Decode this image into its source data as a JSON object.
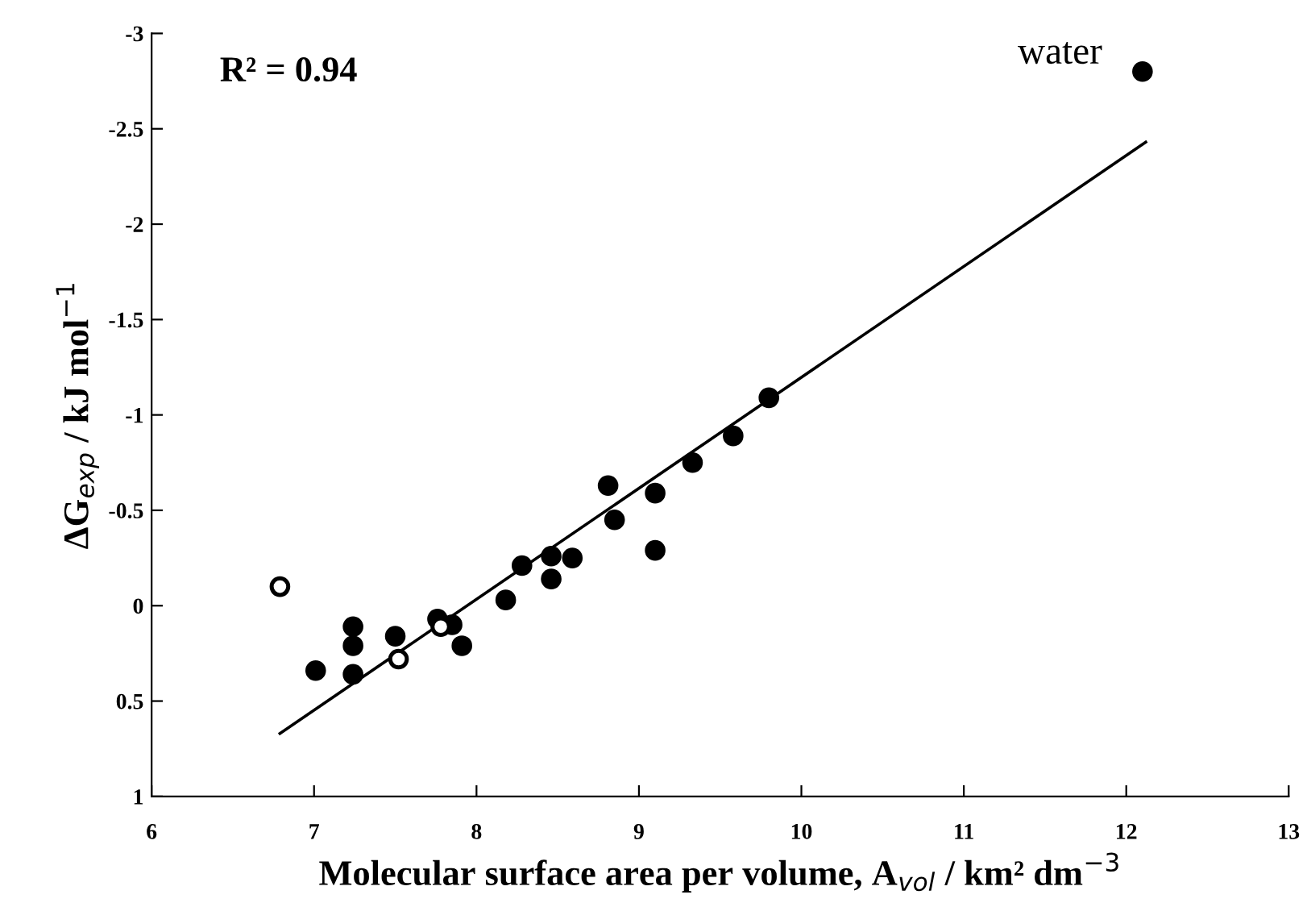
{
  "chart_data": {
    "type": "scatter",
    "xlabel": "Molecular surface area per volume, A$_{vol}$ / km² dm$^{−3}$",
    "ylabel": "ΔG$_{exp}$ / kJ mol$^{−1}$",
    "xlim": [
      6,
      13
    ],
    "xticks": [
      6,
      7,
      8,
      9,
      10,
      11,
      12,
      13
    ],
    "ylim": [
      1,
      -3
    ],
    "yticks": [
      -3,
      -2.5,
      -2,
      -1.5,
      -1,
      -0.5,
      0,
      0.5,
      1
    ],
    "grid": false,
    "legend": false,
    "marker": "circle",
    "annotations": [
      "R² = 0.94",
      {
        "text": "water",
        "x": 12.1,
        "y": -2.8
      }
    ],
    "series": [
      {
        "type": "line",
        "color": "#000000",
        "x": [
          6.79,
          12.12
        ],
        "values": [
          0.67,
          -2.43
        ],
        "marker": "none",
        "line_style": "solid"
      },
      {
        "color": "#000000",
        "x": [
          7.01,
          7.24,
          7.24,
          7.24,
          7.5,
          7.76,
          7.85,
          7.91,
          8.18,
          8.28,
          8.46,
          8.46,
          8.59,
          8.81,
          8.85,
          9.1,
          9.1,
          9.33,
          9.58,
          9.8,
          12.1
        ],
        "values": [
          0.34,
          0.11,
          0.21,
          0.36,
          0.16,
          0.07,
          0.1,
          0.21,
          -0.03,
          -0.21,
          -0.26,
          -0.14,
          -0.25,
          -0.63,
          -0.45,
          -0.59,
          -0.29,
          -0.75,
          -0.89,
          -1.09,
          -2.8
        ]
      },
      {
        "color": "#ffffff",
        "x": [
          6.79,
          7.52,
          7.78
        ],
        "values": [
          -0.1,
          0.28,
          0.11
        ]
      }
    ]
  }
}
